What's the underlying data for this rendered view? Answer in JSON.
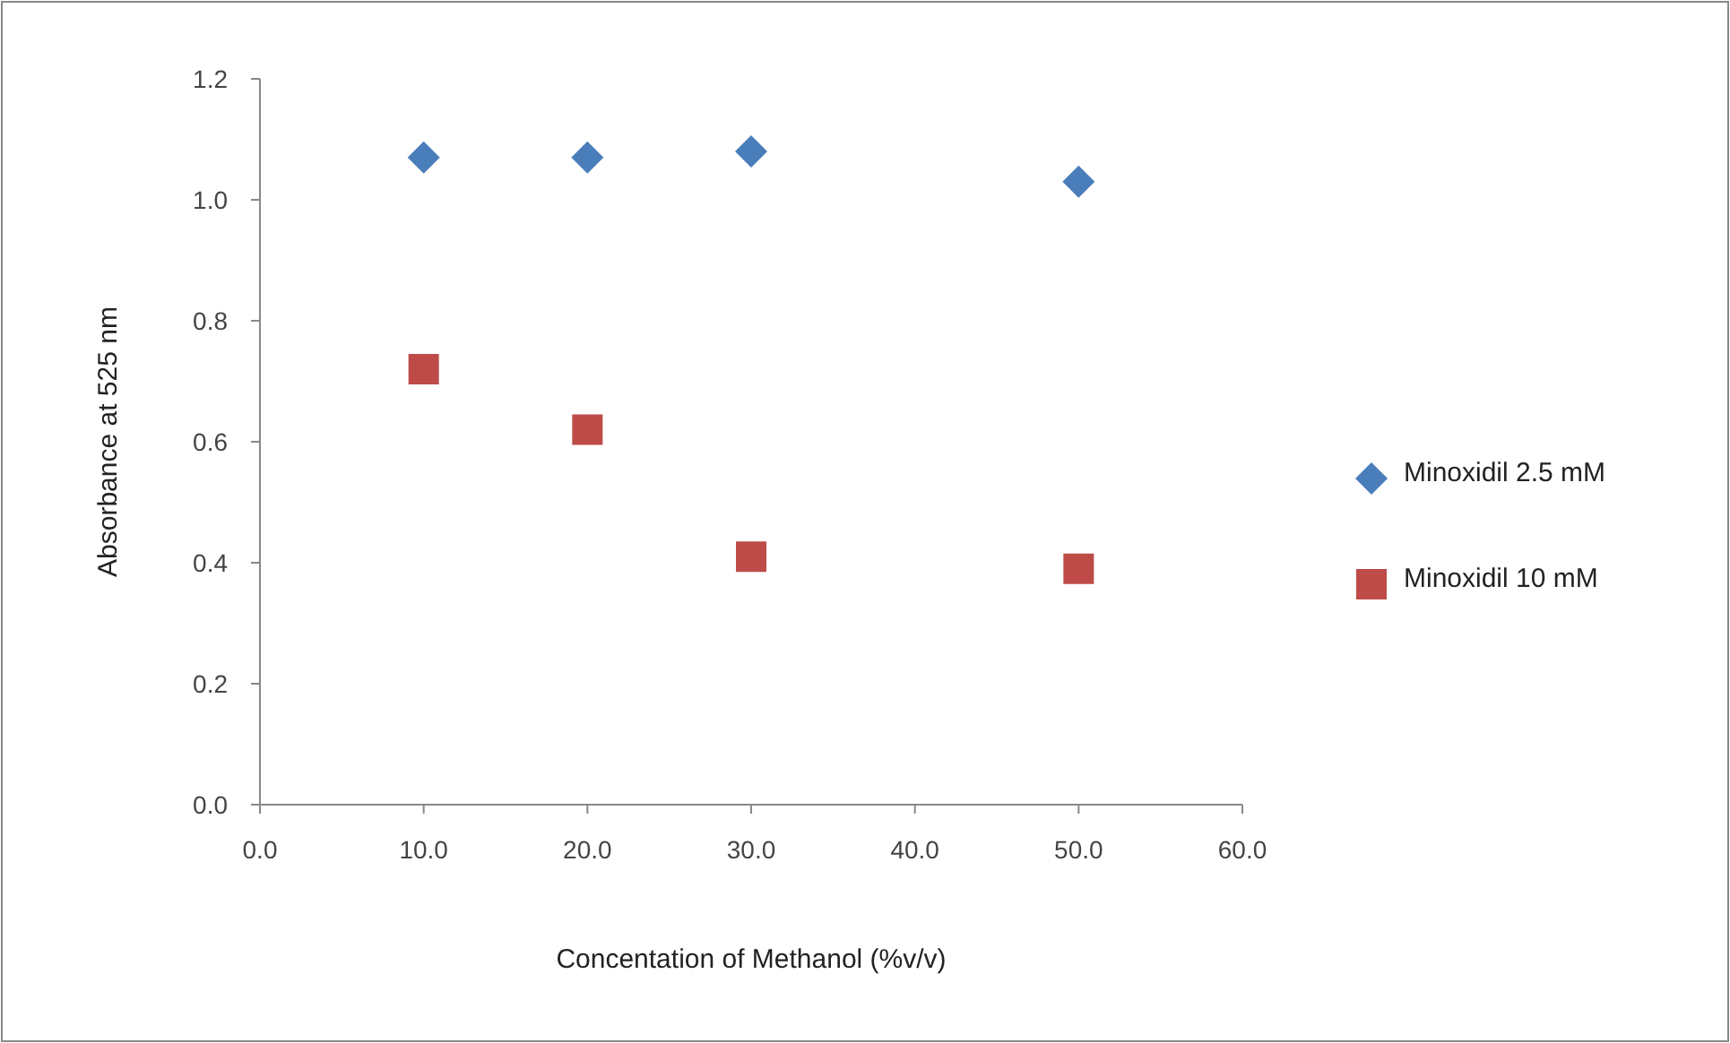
{
  "chart_data": {
    "type": "scatter",
    "xlabel": "Concentation of Methanol (%v/v)",
    "ylabel": "Absorbance at 525 nm",
    "x": [
      10,
      20,
      30,
      50
    ],
    "series": [
      {
        "name": "Minoxidil 2.5 mM",
        "color": "#4a7ebb",
        "marker": "diamond",
        "values": [
          1.07,
          1.07,
          1.08,
          1.03
        ]
      },
      {
        "name": "Minoxidil 10 mM",
        "color": "#be4b48",
        "marker": "square",
        "values": [
          0.72,
          0.62,
          0.41,
          0.39
        ]
      }
    ],
    "xlim": [
      0,
      60
    ],
    "xticks": [
      {
        "value": 0,
        "label": "0.0"
      },
      {
        "value": 10,
        "label": "10.0"
      },
      {
        "value": 20,
        "label": "20.0"
      },
      {
        "value": 30,
        "label": "30.0"
      },
      {
        "value": 40,
        "label": "40.0"
      },
      {
        "value": 50,
        "label": "50.0"
      },
      {
        "value": 60,
        "label": "60.0"
      }
    ],
    "ylim": [
      0,
      1.2
    ],
    "yticks": [
      {
        "value": 0,
        "label": "0.0"
      },
      {
        "value": 0.2,
        "label": "0.2"
      },
      {
        "value": 0.4,
        "label": "0.4"
      },
      {
        "value": 0.6,
        "label": "0.6"
      },
      {
        "value": 0.8,
        "label": "0.8"
      },
      {
        "value": 1,
        "label": "1.0"
      },
      {
        "value": 1.2,
        "label": "1.2"
      }
    ],
    "grid": false,
    "legend": "right"
  }
}
